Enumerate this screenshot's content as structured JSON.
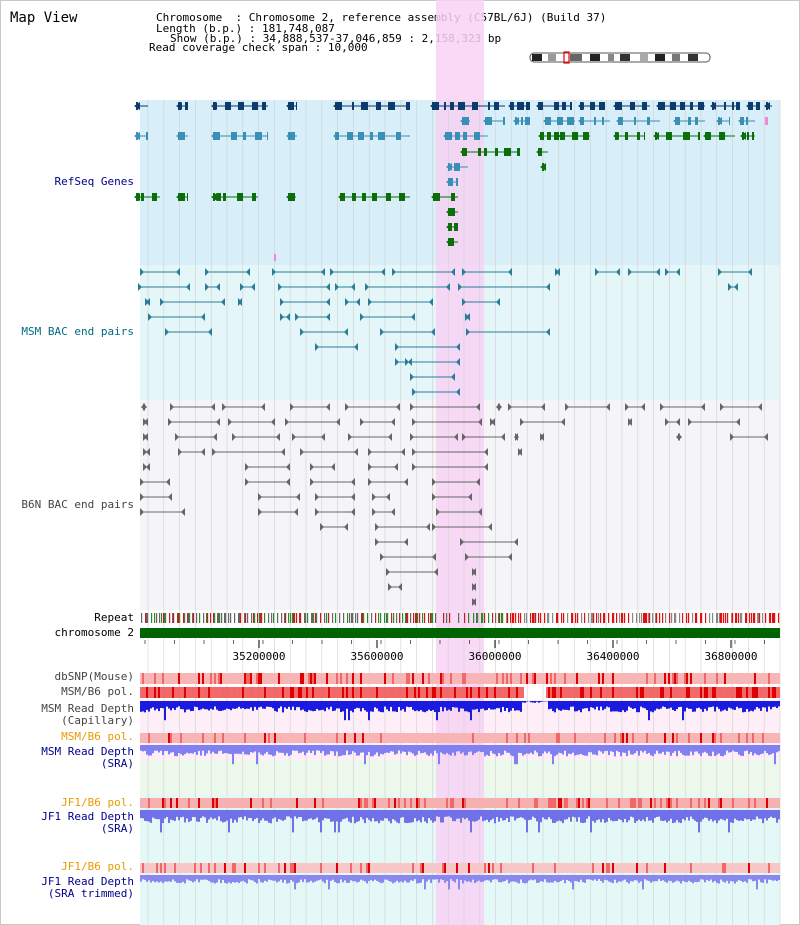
{
  "title": "Map View",
  "info": {
    "rows": [
      {
        "key": "Chromosome",
        "value": "Chromosome 2, reference assembly (C57BL/6J) (Build 37)"
      },
      {
        "key": "Length (b.p.)",
        "value": "181,748,087"
      },
      {
        "key": "Show (b.p.)",
        "value": "34,888,537-37,046,859 : 2,158,323 bp"
      },
      {
        "key": "Read coverage check span",
        "value": "10,000"
      }
    ]
  },
  "ruler": {
    "ticks": [
      "35200000",
      "35600000",
      "36000000",
      "36400000",
      "36800000"
    ]
  },
  "tracks": {
    "refseq": "RefSeq Genes",
    "msm_bac": "MSM BAC end pairs",
    "b6n_bac": "B6N BAC end pairs",
    "repeat": "Repeat",
    "chromosome": "chromosome 2",
    "dbsnp": "dbSNP(Mouse)",
    "msm_b6_pol": "MSM/B6 pol.",
    "msm_read_depth_cap_1": "MSM Read Depth",
    "msm_read_depth_cap_2": "(Capillary)",
    "msm_b6_pol_2": "MSM/B6 pol.",
    "msm_read_depth_sra_1": "MSM Read Depth",
    "msm_read_depth_sra_2": "(SRA)",
    "jf1_b6_pol_1": "JF1/B6 pol.",
    "jf1_read_depth_sra_1": "JF1 Read Depth",
    "jf1_read_depth_sra_2": "(SRA)",
    "jf1_b6_pol_2": "JF1/B6 pol.",
    "jf1_read_depth_trim_1": "JF1 Read Depth",
    "jf1_read_depth_trim_2": "(SRA trimmed)"
  },
  "colors": {
    "highlight": "#f7d2f5",
    "refseq_bg": "#d8eef8",
    "msm_bg": "#e4f6f7",
    "b6n_bg": "#f4f4f8",
    "navy": "#0d3b6e",
    "teal": "#3a8fb5",
    "green": "#0b6e0b",
    "chromosome": "#006400",
    "label_blue": "#00008b",
    "label_teal": "#006a80",
    "label_orange": "#e89b00"
  }
}
